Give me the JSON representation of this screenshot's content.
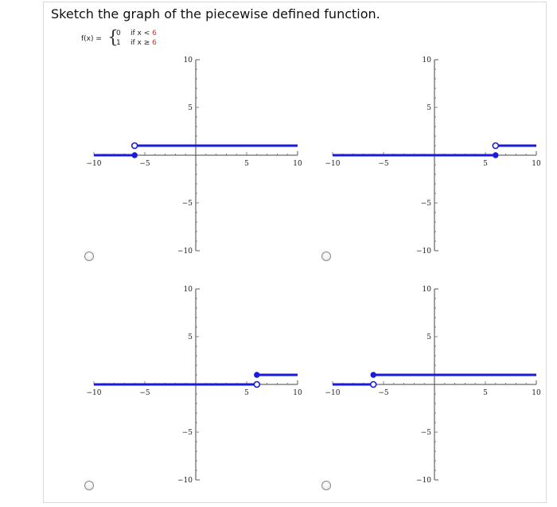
{
  "question": "Sketch the graph of the piecewise defined function.",
  "function": {
    "lhs": "f(x) =",
    "pieces": [
      {
        "value": "0",
        "cond_prefix": "if x <",
        "cond_number": "6"
      },
      {
        "value": "1",
        "cond_prefix": "if x ≥",
        "cond_number": "6"
      }
    ]
  },
  "colors": {
    "line": "#1a1adf",
    "accent": "#c0392b"
  },
  "options": [
    {
      "id": "option-a",
      "chart_data": {
        "type": "line",
        "xlim": [
          -10,
          10
        ],
        "ylim": [
          -10,
          10
        ],
        "x_ticks": [
          -10,
          -5,
          5,
          10
        ],
        "y_ticks": [
          -10,
          -5,
          5,
          10
        ],
        "x_tick_labels": [
          "−10",
          "−5",
          "5",
          "10"
        ],
        "y_tick_labels": [
          "−10",
          "−5",
          "5",
          "10"
        ],
        "segments": [
          {
            "x": [
              -10,
              -6
            ],
            "y": [
              0,
              0
            ]
          },
          {
            "x": [
              -6,
              10
            ],
            "y": [
              1,
              1
            ]
          }
        ],
        "closed_points": [
          {
            "x": -6,
            "y": 0
          }
        ],
        "open_points": [
          {
            "x": -6,
            "y": 1
          }
        ]
      }
    },
    {
      "id": "option-b",
      "chart_data": {
        "type": "line",
        "xlim": [
          -10,
          10
        ],
        "ylim": [
          -10,
          10
        ],
        "x_ticks": [
          -10,
          -5,
          5,
          10
        ],
        "y_ticks": [
          -10,
          -5,
          5,
          10
        ],
        "x_tick_labels": [
          "−10",
          "−5",
          "5",
          "10"
        ],
        "y_tick_labels": [
          "−10",
          "−5",
          "5",
          "10"
        ],
        "segments": [
          {
            "x": [
              -10,
              6
            ],
            "y": [
              0,
              0
            ]
          },
          {
            "x": [
              6,
              10
            ],
            "y": [
              1,
              1
            ]
          }
        ],
        "closed_points": [
          {
            "x": 6,
            "y": 0
          }
        ],
        "open_points": [
          {
            "x": 6,
            "y": 1
          }
        ]
      }
    },
    {
      "id": "option-c",
      "chart_data": {
        "type": "line",
        "xlim": [
          -10,
          10
        ],
        "ylim": [
          -10,
          10
        ],
        "x_ticks": [
          -10,
          -5,
          5,
          10
        ],
        "y_ticks": [
          -10,
          -5,
          5,
          10
        ],
        "x_tick_labels": [
          "−10",
          "−5",
          "5",
          "10"
        ],
        "y_tick_labels": [
          "−10",
          "−5",
          "5",
          "10"
        ],
        "segments": [
          {
            "x": [
              -10,
              6
            ],
            "y": [
              0,
              0
            ]
          },
          {
            "x": [
              6,
              10
            ],
            "y": [
              1,
              1
            ]
          }
        ],
        "closed_points": [
          {
            "x": 6,
            "y": 1
          }
        ],
        "open_points": [
          {
            "x": 6,
            "y": 0
          }
        ]
      }
    },
    {
      "id": "option-d",
      "chart_data": {
        "type": "line",
        "xlim": [
          -10,
          10
        ],
        "ylim": [
          -10,
          10
        ],
        "x_ticks": [
          -10,
          -5,
          5,
          10
        ],
        "y_ticks": [
          -10,
          -5,
          5,
          10
        ],
        "x_tick_labels": [
          "−10",
          "−5",
          "5",
          "10"
        ],
        "y_tick_labels": [
          "−10",
          "−5",
          "5",
          "10"
        ],
        "segments": [
          {
            "x": [
              -10,
              -6
            ],
            "y": [
              0,
              0
            ]
          },
          {
            "x": [
              -6,
              10
            ],
            "y": [
              1,
              1
            ]
          }
        ],
        "closed_points": [
          {
            "x": -6,
            "y": 1
          }
        ],
        "open_points": [
          {
            "x": -6,
            "y": 0
          }
        ]
      }
    }
  ]
}
